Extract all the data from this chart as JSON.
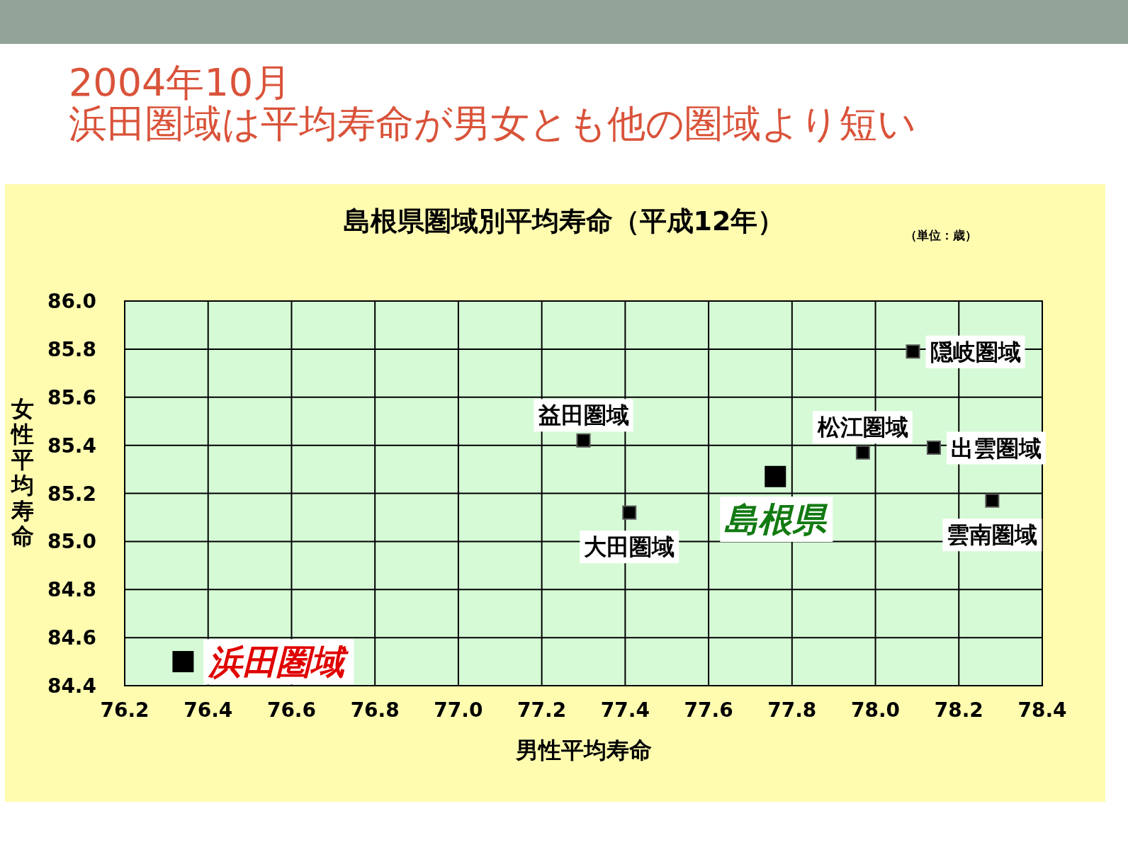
{
  "chart_data": {
    "type": "scatter",
    "title": "島根県圏域別平均寿命（平成12年）",
    "xlabel": "男性平均寿命",
    "ylabel": "女性平均寿命",
    "annotations": [
      "2004年10月",
      "浜田圏域は平均寿命が男女とも他の圏域より短い",
      "（単位：歳）"
    ],
    "xlim": [
      76.2,
      78.4
    ],
    "xticks": [
      {
        "value": 76.2,
        "label": "76.2"
      },
      {
        "value": 76.4,
        "label": "76.4"
      },
      {
        "value": 76.6,
        "label": "76.6"
      },
      {
        "value": 76.8,
        "label": "76.8"
      },
      {
        "value": 77.0,
        "label": "77.0"
      },
      {
        "value": 77.2,
        "label": "77.2"
      },
      {
        "value": 77.4,
        "label": "77.4"
      },
      {
        "value": 77.6,
        "label": "77.6"
      },
      {
        "value": 77.8,
        "label": "77.8"
      },
      {
        "value": 78.0,
        "label": "78.0"
      },
      {
        "value": 78.2,
        "label": "78.2"
      },
      {
        "value": 78.4,
        "label": "78.4"
      }
    ],
    "ylim": [
      84.4,
      86.0
    ],
    "yticks": [
      {
        "value": 84.4,
        "label": "84.4"
      },
      {
        "value": 84.6,
        "label": "84.6"
      },
      {
        "value": 84.8,
        "label": "84.8"
      },
      {
        "value": 85.0,
        "label": "85.0"
      },
      {
        "value": 85.2,
        "label": "85.2"
      },
      {
        "value": 85.4,
        "label": "85.4"
      },
      {
        "value": 85.6,
        "label": "85.6"
      },
      {
        "value": 85.8,
        "label": "85.8"
      },
      {
        "value": 86.0,
        "label": "86.0"
      }
    ],
    "grid": true,
    "marker": "square",
    "series": [
      {
        "name": "浜田圏域",
        "color": "#000000",
        "x": [
          76.34
        ],
        "values": [
          84.5
        ]
      },
      {
        "name": "島根県",
        "color": "#000000",
        "x": [
          77.76
        ],
        "values": [
          85.27
        ]
      },
      {
        "name": "益田圏域",
        "color": "#000000",
        "x": [
          77.3
        ],
        "values": [
          85.42
        ]
      },
      {
        "name": "大田圏域",
        "color": "#000000",
        "x": [
          77.41
        ],
        "values": [
          85.12
        ]
      },
      {
        "name": "松江圏域",
        "color": "#000000",
        "x": [
          77.97
        ],
        "values": [
          85.37
        ]
      },
      {
        "name": "隠岐圏域",
        "color": "#000000",
        "x": [
          78.09
        ],
        "values": [
          85.79
        ]
      },
      {
        "name": "出雲圏域",
        "color": "#000000",
        "x": [
          78.14
        ],
        "values": [
          85.39
        ]
      },
      {
        "name": "雲南圏域",
        "color": "#000000",
        "x": [
          78.28
        ],
        "values": [
          85.17
        ]
      }
    ]
  }
}
